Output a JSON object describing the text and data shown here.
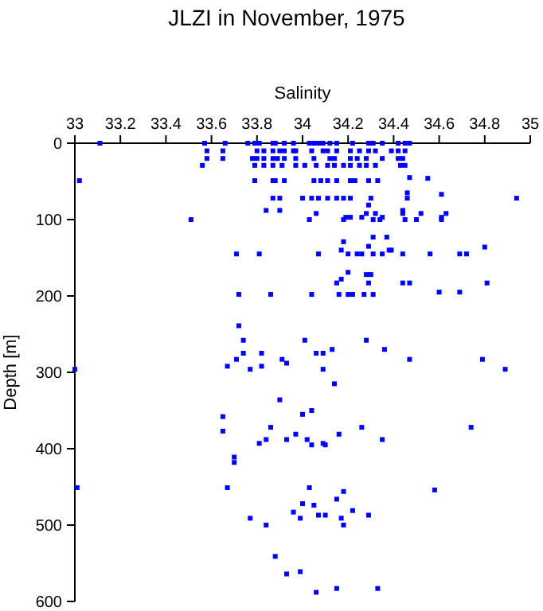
{
  "chart_data": {
    "type": "scatter",
    "title": "JLZI in November, 1975",
    "xlabel": "Salinity",
    "ylabel": "Depth [m]",
    "xlim": [
      33,
      35
    ],
    "xticks": [
      33,
      33.2,
      33.4,
      33.6,
      33.8,
      34,
      34.2,
      34.4,
      34.6,
      34.8,
      35
    ],
    "ylim": [
      600,
      0
    ],
    "yticks": [
      0,
      100,
      200,
      300,
      400,
      500,
      600
    ],
    "marker": "square",
    "series": [
      {
        "color": "#0000ff",
        "x": [
          33.11,
          33.57,
          33.66,
          33.76,
          33.79,
          33.81,
          33.87,
          33.88,
          33.92,
          33.96,
          34.03,
          34.05,
          34.07,
          34.09,
          34.12,
          34.15,
          34.22,
          34.29,
          34.31,
          34.35,
          34.42,
          34.45,
          34.47,
          33.58,
          33.65,
          33.8,
          33.83,
          33.87,
          33.9,
          33.92,
          33.96,
          33.97,
          34.04,
          34.09,
          34.11,
          34.15,
          34.21,
          34.25,
          34.29,
          34.32,
          34.39,
          34.42,
          34.45,
          33.58,
          33.65,
          33.78,
          33.8,
          33.83,
          33.87,
          33.89,
          33.92,
          33.97,
          34.05,
          34.12,
          34.14,
          34.21,
          34.24,
          34.28,
          34.35,
          34.42,
          34.44,
          33.56,
          33.79,
          33.83,
          33.87,
          33.91,
          33.97,
          34.01,
          34.06,
          34.11,
          34.14,
          34.18,
          34.21,
          34.25,
          34.28,
          34.32,
          34.43,
          34.45,
          33.02,
          33.79,
          33.87,
          33.88,
          33.92,
          34.05,
          34.08,
          34.11,
          34.15,
          34.21,
          34.23,
          34.29,
          34.33,
          34.47,
          34.55,
          33.87,
          33.9,
          34.0,
          34.04,
          34.07,
          34.11,
          34.15,
          34.18,
          34.21,
          34.3,
          34.46,
          34.94,
          34.46,
          34.61,
          34.29,
          33.84,
          33.9,
          34.44,
          34.06,
          34.28,
          34.32,
          34.44,
          34.52,
          34.63,
          34.19,
          34.21,
          34.26,
          34.35,
          34.61,
          33.51,
          34.03,
          34.18,
          34.31,
          34.34,
          34.45,
          34.5,
          34.61,
          34.31,
          34.37,
          34.18,
          34.29,
          34.17,
          34.38,
          34.39,
          33.71,
          33.81,
          34.07,
          34.2,
          34.24,
          34.26,
          34.31,
          34.35,
          34.44,
          34.56,
          34.69,
          34.72,
          34.8,
          34.2,
          34.28,
          34.3,
          34.17,
          34.15,
          34.29,
          34.44,
          34.47,
          34.81,
          34.6,
          34.69,
          33.72,
          33.86,
          34.04,
          34.16,
          34.2,
          34.22,
          34.27,
          34.31,
          33.72,
          33.74,
          34.01,
          34.28,
          34.13,
          34.36,
          33.74,
          33.82,
          34.06,
          34.09,
          33.71,
          33.91,
          34.47,
          34.79,
          33.93,
          33.67,
          33.82,
          33.0,
          33.77,
          34.09,
          34.89,
          34.14,
          33.9,
          34.0,
          34.04,
          33.65,
          33.86,
          34.26,
          34.74,
          33.65,
          33.97,
          34.16,
          33.84,
          33.93,
          34.02,
          34.35,
          33.81,
          34.09,
          34.04,
          34.1,
          33.7,
          33.7,
          33.01,
          33.67,
          34.03,
          34.58,
          34.18,
          34.15,
          34.0,
          34.05,
          34.22,
          33.96,
          34.07,
          34.1,
          34.29,
          33.77,
          33.99,
          34.17,
          33.84,
          34.18,
          33.88,
          33.99,
          33.93,
          34.15,
          34.33,
          34.06
        ],
        "values": [
          0,
          0,
          0,
          0,
          0,
          0,
          0,
          0,
          0,
          0,
          0,
          0,
          0,
          0,
          0,
          0,
          0,
          0,
          0,
          0,
          0,
          0,
          0,
          10,
          10,
          10,
          10,
          10,
          10,
          10,
          10,
          10,
          10,
          10,
          10,
          10,
          10,
          10,
          10,
          10,
          10,
          10,
          10,
          20,
          20,
          20,
          20,
          20,
          20,
          20,
          20,
          20,
          20,
          20,
          20,
          20,
          20,
          20,
          20,
          20,
          20,
          29,
          29,
          29,
          29,
          29,
          29,
          29,
          29,
          29,
          29,
          29,
          29,
          29,
          29,
          29,
          29,
          29,
          49,
          49,
          49,
          49,
          49,
          49,
          49,
          49,
          49,
          49,
          49,
          49,
          49,
          45,
          46,
          72,
          72,
          72,
          72,
          72,
          72,
          72,
          72,
          72,
          72,
          72,
          72,
          65,
          67,
          81,
          88,
          88,
          88,
          92,
          92,
          92,
          92,
          92,
          92,
          97,
          97,
          97,
          97,
          97,
          100,
          100,
          100,
          100,
          100,
          100,
          100,
          100,
          123,
          123,
          129,
          135,
          140,
          140,
          140,
          145,
          145,
          145,
          145,
          145,
          145,
          145,
          145,
          145,
          145,
          145,
          145,
          136,
          169,
          172,
          172,
          178,
          183,
          183,
          183,
          183,
          183,
          195,
          195,
          198,
          198,
          198,
          198,
          198,
          198,
          198,
          198,
          239,
          258,
          258,
          258,
          270,
          270,
          275,
          275,
          275,
          275,
          283,
          283,
          283,
          283,
          288,
          292,
          292,
          296,
          296,
          296,
          296,
          315,
          336,
          355,
          350,
          358,
          372,
          372,
          372,
          377,
          381,
          381,
          388,
          388,
          388,
          388,
          393,
          393,
          395,
          395,
          411,
          418,
          451,
          451,
          451,
          454,
          456,
          466,
          472,
          474,
          481,
          483,
          487,
          487,
          487,
          491,
          491,
          491,
          500,
          500,
          541,
          561,
          564,
          583,
          583,
          588
        ]
      }
    ]
  }
}
